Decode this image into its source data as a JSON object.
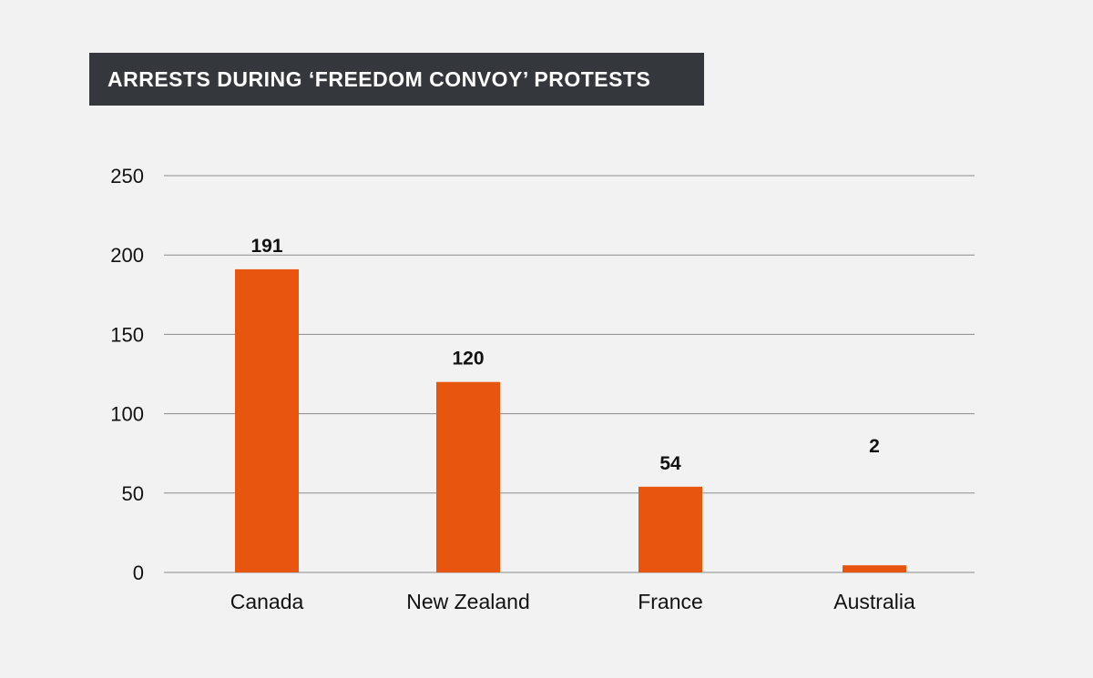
{
  "chart_data": {
    "type": "bar",
    "title": "ARRESTS DURING ‘FREEDOM CONVOY’ PROTESTS",
    "categories": [
      "Canada",
      "New Zealand",
      "France",
      "Australia"
    ],
    "values": [
      191,
      120,
      54,
      2
    ],
    "data_labels": [
      "191",
      "120",
      "54",
      "2"
    ],
    "xlabel": "",
    "ylabel": "",
    "ylim": [
      0,
      250
    ],
    "yticks": [
      0,
      50,
      100,
      150,
      200,
      250
    ],
    "grid": true,
    "legend": "none",
    "colors": {
      "bar": "#e8550f",
      "title_bg": "#34373c",
      "grid": "#8a8a8a",
      "background": "#f2f2f2"
    }
  }
}
